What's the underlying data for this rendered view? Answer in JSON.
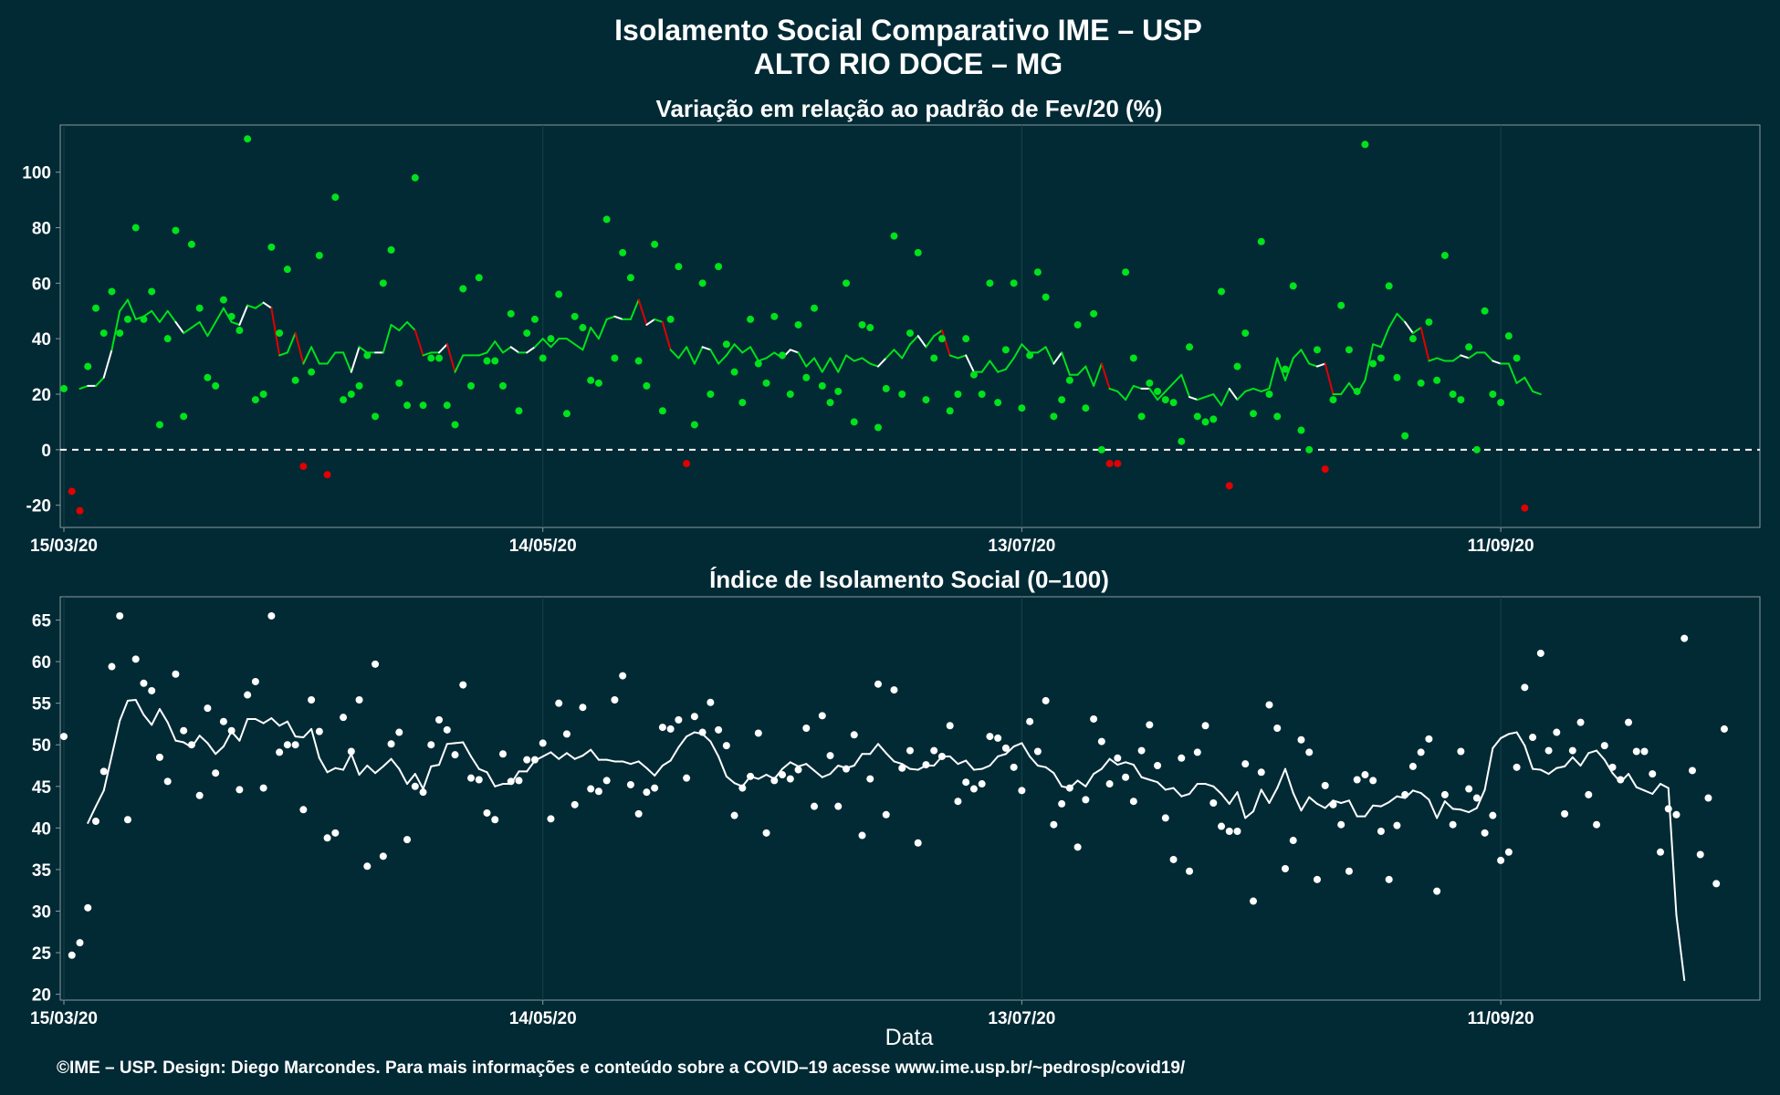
{
  "title_line1": "Isolamento Social Comparativo IME – USP",
  "title_line2": "ALTO RIO DOCE – MG",
  "footer": "©IME – USP. Design: Diego Marcondes. Para mais informações e conteúdo sobre a COVID–19 acesse www.ime.usp.br/~pedrosp/covid19/",
  "colors": {
    "background": "#012a35",
    "positive": "#00e21b",
    "negative": "#e10000",
    "index": "#ffffff",
    "frame": "#8a9aa0"
  },
  "chart_data": [
    {
      "type": "scatter",
      "title": "Variação em relação ao padrão de Fev/20 (%)",
      "x_start": "2020-03-15",
      "x_ticks": [
        "15/03/20",
        "14/05/20",
        "13/07/20",
        "11/09/20"
      ],
      "y_ticks": [
        -20,
        0,
        20,
        40,
        60,
        80,
        100
      ],
      "ylim": [
        -28,
        117
      ],
      "reference_line": 0,
      "legend": "none",
      "series": [
        {
          "kind": "points",
          "values": [
            22,
            -15,
            -22,
            30,
            51,
            42,
            57,
            42,
            47,
            80,
            47,
            57,
            9,
            40,
            79,
            12,
            74,
            51,
            26,
            23,
            54,
            48,
            43,
            112,
            18,
            20,
            73,
            42,
            65,
            25,
            -6,
            28,
            70,
            -9,
            91,
            18,
            20,
            23,
            34,
            12,
            60,
            72,
            24,
            16,
            98,
            16,
            33,
            33,
            16,
            9,
            58,
            23,
            62,
            32,
            32,
            23,
            49,
            14,
            42,
            47,
            33,
            40,
            56,
            13,
            48,
            44,
            25,
            24,
            83,
            33,
            71,
            62,
            32,
            23,
            74,
            14,
            47,
            66,
            -5,
            9,
            60,
            20,
            66,
            38,
            28,
            17,
            47,
            31,
            24,
            48,
            34,
            20,
            45,
            26,
            51,
            23,
            17,
            21,
            60,
            10,
            45,
            44,
            8,
            22,
            77,
            20,
            42,
            71,
            18,
            33,
            40,
            14,
            20,
            40,
            27,
            20,
            60,
            17,
            36,
            60,
            15,
            34,
            64,
            55,
            12,
            18,
            25,
            45,
            15,
            49,
            0,
            -5,
            -5,
            64,
            33,
            12,
            24,
            21,
            18,
            17,
            3,
            37,
            12,
            10,
            11,
            57,
            -13,
            30,
            42,
            13,
            75,
            20,
            12,
            29,
            59,
            7,
            0,
            36,
            -7,
            18,
            52,
            36,
            21,
            110,
            31,
            33,
            59,
            26,
            5,
            40,
            24,
            46,
            25,
            70,
            20,
            18,
            37,
            0,
            50,
            20,
            17,
            41,
            33,
            -21
          ]
        },
        {
          "kind": "moving_average",
          "start_index": 2,
          "values": [
            22,
            23,
            23,
            26,
            36,
            50,
            54,
            47,
            48,
            50,
            46,
            50,
            46,
            42,
            44,
            46,
            41,
            46,
            51,
            46,
            45,
            52,
            51,
            53,
            51,
            34,
            35,
            42,
            31,
            37,
            31,
            31,
            35,
            35,
            28,
            37,
            35,
            35,
            35,
            45,
            43,
            46,
            43,
            34,
            35,
            35,
            38,
            28,
            34,
            34,
            34,
            35,
            39,
            35,
            37,
            35,
            35,
            37,
            40,
            37,
            40,
            40,
            38,
            36,
            44,
            40,
            47,
            48,
            47,
            47,
            54,
            45,
            47,
            46,
            36,
            33,
            37,
            31,
            37,
            36,
            31,
            34,
            38,
            35,
            37,
            32,
            33,
            35,
            33,
            36,
            35,
            30,
            33,
            28,
            33,
            28,
            34,
            32,
            33,
            31,
            30,
            33,
            36,
            33,
            38,
            41,
            37,
            41,
            43,
            34,
            33,
            34,
            28,
            28,
            32,
            28,
            29,
            33,
            38,
            35,
            35,
            37,
            31,
            35,
            27,
            27,
            30,
            23,
            31,
            22,
            21,
            18,
            23,
            22,
            22,
            18,
            21,
            24,
            27,
            19,
            18,
            19,
            20,
            16,
            22,
            18,
            21,
            22,
            21,
            22,
            33,
            25,
            33,
            36,
            31,
            30,
            31,
            20,
            20,
            24,
            20,
            25,
            38,
            37,
            44,
            49,
            46,
            42,
            44,
            32,
            33,
            32,
            32,
            34,
            33,
            35,
            35,
            32,
            31,
            31,
            24,
            26,
            21,
            20
          ]
        }
      ]
    },
    {
      "type": "scatter",
      "title": "Índice de Isolamento Social (0–100)",
      "xlabel": "Data",
      "x_start": "2020-03-15",
      "x_ticks": [
        "15/03/20",
        "14/05/20",
        "13/07/20",
        "11/09/20"
      ],
      "y_ticks": [
        20,
        25,
        30,
        35,
        40,
        45,
        50,
        55,
        60,
        65
      ],
      "ylim": [
        19.3,
        67.8
      ],
      "legend": "none",
      "series": [
        {
          "kind": "points",
          "values": [
            51,
            24.7,
            26.2,
            30.4,
            40.8,
            46.8,
            59.4,
            65.5,
            41,
            60.3,
            57.4,
            56.5,
            48.5,
            45.6,
            58.5,
            51.7,
            50,
            43.9,
            54.4,
            46.6,
            52.8,
            51.7,
            44.6,
            56,
            57.6,
            44.8,
            65.5,
            49.1,
            50,
            50,
            42.2,
            55.4,
            51.6,
            38.8,
            39.4,
            53.3,
            49.2,
            55.4,
            35.4,
            59.7,
            36.6,
            50.1,
            51.5,
            38.6,
            45,
            44.3,
            50,
            53,
            51.8,
            48.8,
            57.2,
            46,
            45.8,
            41.8,
            41,
            48.9,
            45.6,
            45.7,
            48.2,
            48.2,
            50.2,
            41.1,
            55,
            51.3,
            42.8,
            54.5,
            44.7,
            44.4,
            45.7,
            55.4,
            58.3,
            45.2,
            41.7,
            44.3,
            44.8,
            52.1,
            51.9,
            53,
            46,
            53.4,
            51.5,
            55.1,
            51.8,
            49.9,
            41.5,
            44.8,
            46.2,
            51.4,
            39.4,
            45.7,
            46.4,
            45.9,
            47,
            52,
            42.6,
            53.5,
            48.7,
            42.6,
            47.1,
            51.2,
            39.1,
            45.9,
            57.3,
            41.6,
            56.6,
            47.2,
            49.3,
            38.2,
            47.6,
            49.3,
            48.6,
            52.3,
            43.2,
            45.5,
            44.7,
            45.3,
            51,
            50.8,
            49.6,
            47.3,
            44.5,
            52.8,
            49.2,
            55.3,
            40.4,
            42.9,
            44.8,
            37.7,
            43.4,
            53.1,
            50.4,
            45.3,
            48.4,
            46.1,
            43.2,
            49.3,
            52.4,
            47.5,
            41.2,
            36.2,
            48.4,
            34.8,
            49.1,
            52.3,
            43,
            40.2,
            39.6,
            39.6,
            47.7,
            31.2,
            46.7,
            54.8,
            52,
            35.1,
            38.5,
            50.6,
            49.1,
            33.8,
            45.1,
            42.8,
            40.4,
            34.8,
            45.8,
            46.4,
            45.7,
            39.6,
            33.8,
            40.3,
            44,
            47.4,
            49.1,
            50.7,
            32.4,
            44,
            40.4,
            49.2,
            44.7,
            43.6,
            39.4,
            41.5,
            36.1,
            37.1,
            47.3,
            56.9,
            50.9,
            61,
            49.3,
            51.5,
            41.7,
            49.3,
            52.7,
            44,
            40.4,
            49.9,
            47.3,
            45.8,
            52.7,
            49.2,
            49.2,
            46.5,
            37.1,
            42.3,
            41.6,
            62.8,
            46.9,
            36.8,
            43.6,
            33.3,
            51.9
          ]
        },
        {
          "kind": "moving_average",
          "start_index": 3,
          "values": [
            40.6,
            42.6,
            44.5,
            48.7,
            52.9,
            55.3,
            55.4,
            53.6,
            52.4,
            54.3,
            52.7,
            50.5,
            50.3,
            49.7,
            51.1,
            50.2,
            48.9,
            49.8,
            51.6,
            50.5,
            53.1,
            53.1,
            52.6,
            53.2,
            52.3,
            52.8,
            51,
            50.9,
            51.9,
            48.4,
            46.7,
            47.2,
            47,
            48.9,
            46.4,
            47.5,
            46.6,
            47.4,
            48.3,
            47.1,
            45.3,
            46.5,
            44.7,
            47.4,
            47.6,
            50.1,
            50.2,
            50.3,
            48.6,
            47.1,
            46.7,
            45,
            45.3,
            45.3,
            46.8,
            46.8,
            48.1,
            48.6,
            49.1,
            48.3,
            49,
            48.3,
            48.7,
            49.4,
            48.2,
            48.2,
            48,
            48,
            47.7,
            48,
            47.2,
            46.3,
            47.5,
            48.1,
            49.7,
            51,
            51.5,
            51.3,
            50.4,
            48.6,
            46.2,
            45.4,
            45,
            46.2,
            45.9,
            46.4,
            45.9,
            47.1,
            47.9,
            47.4,
            47.7,
            46.9,
            46.1,
            46.5,
            47.5,
            47.2,
            47.5,
            48.9,
            48.9,
            50.1,
            49,
            48,
            47.7,
            47.1,
            47,
            47.5,
            47.5,
            48.6,
            48.6,
            47.7,
            48.1,
            47,
            47.1,
            47.5,
            48.6,
            48.9,
            49.8,
            50.2,
            48.6,
            47.5,
            47.3,
            46.6,
            45,
            44.8,
            45.7,
            45,
            46.5,
            47.1,
            48.3,
            47.6,
            47.9,
            47.6,
            46.1,
            45.8,
            45.5,
            44.6,
            44.8,
            43.8,
            44.1,
            45.3,
            45.3,
            45,
            44.1,
            42.9,
            44.3,
            41.2,
            42,
            44.6,
            43,
            44.8,
            47.1,
            44.2,
            42.1,
            43.7,
            42.9,
            42.4,
            43.3,
            43,
            43.3,
            41.4,
            41.4,
            42.7,
            42.6,
            43.1,
            43.8,
            43.6,
            44.5,
            44.2,
            43.4,
            41.2,
            43.2,
            42.3,
            42.2,
            41.9,
            42.4,
            44.6,
            49.6,
            50.8,
            51.3,
            51.5,
            49.9,
            47.1,
            47,
            46.5,
            47.2,
            47.4,
            48.5,
            47.5,
            49,
            49.3,
            48.2,
            46.6,
            45.5,
            46.5,
            44.9,
            44.5,
            44.1,
            45.3,
            44.8,
            29.5,
            21.7
          ]
        }
      ]
    }
  ]
}
